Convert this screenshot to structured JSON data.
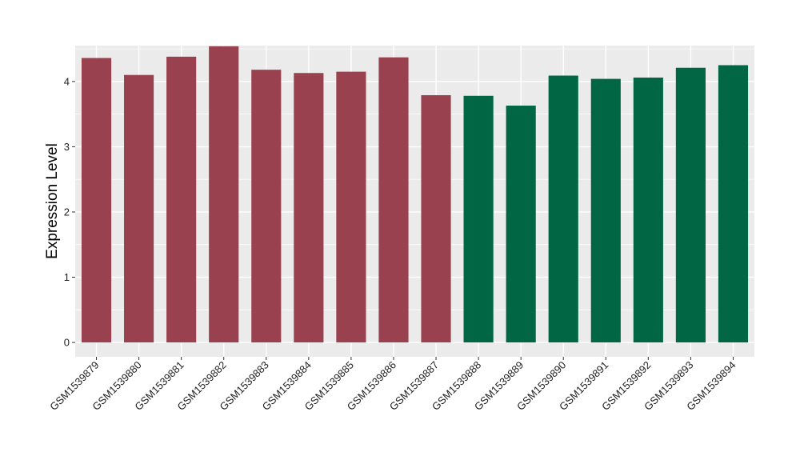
{
  "chart_data": {
    "type": "bar",
    "title": "",
    "xlabel": "",
    "ylabel": "Expression Level",
    "ylim": [
      -0.22,
      4.55
    ],
    "yticks": [
      0,
      1,
      2,
      3,
      4
    ],
    "grid": true,
    "legend": "none",
    "panel_color": "#EBEBEB",
    "categories": [
      "GSM1539879",
      "GSM1539880",
      "GSM1539881",
      "GSM1539882",
      "GSM1539883",
      "GSM1539884",
      "GSM1539885",
      "GSM1539886",
      "GSM1539887",
      "GSM1539888",
      "GSM1539889",
      "GSM1539890",
      "GSM1539891",
      "GSM1539892",
      "GSM1539893",
      "GSM1539894"
    ],
    "values": [
      4.36,
      4.1,
      4.38,
      4.54,
      4.18,
      4.13,
      4.15,
      4.37,
      3.79,
      3.78,
      3.63,
      4.09,
      4.04,
      4.06,
      4.21,
      4.25
    ],
    "colors": [
      "#9A4150",
      "#9A4150",
      "#9A4150",
      "#9A4150",
      "#9A4150",
      "#9A4150",
      "#9A4150",
      "#9A4150",
      "#9A4150",
      "#006644",
      "#006644",
      "#006644",
      "#006644",
      "#006644",
      "#006644",
      "#006644"
    ]
  }
}
